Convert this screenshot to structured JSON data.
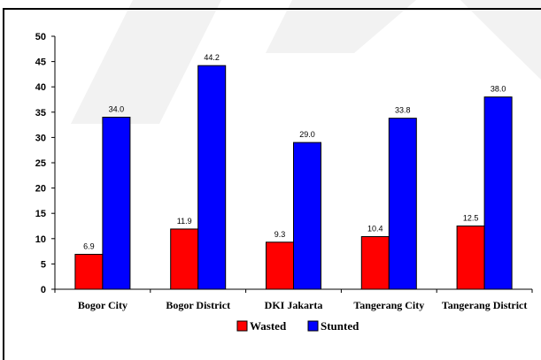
{
  "chart_data": {
    "type": "bar",
    "categories": [
      "Bogor City",
      "Bogor District",
      "DKI Jakarta",
      "Tangerang City",
      "Tangerang District"
    ],
    "series": [
      {
        "name": "Wasted",
        "color": "#ff0000",
        "values": [
          6.9,
          11.9,
          9.3,
          10.4,
          12.5
        ],
        "labels": [
          "6.9",
          "11.9",
          "9.3",
          "10.4",
          "12.5"
        ]
      },
      {
        "name": "Stunted",
        "color": "#0000ff",
        "values": [
          34.0,
          44.2,
          29.0,
          33.8,
          38.0
        ],
        "labels": [
          "34.0",
          "44.2",
          "29.0",
          "33.8",
          "38.0"
        ]
      }
    ],
    "ylim": [
      0,
      50
    ],
    "yticks": [
      "0",
      "5",
      "10",
      "15",
      "20",
      "25",
      "30",
      "35",
      "40",
      "45",
      "50"
    ],
    "title": "",
    "xlabel": "",
    "ylabel": "",
    "grid": false,
    "legend": "bottom-center"
  }
}
